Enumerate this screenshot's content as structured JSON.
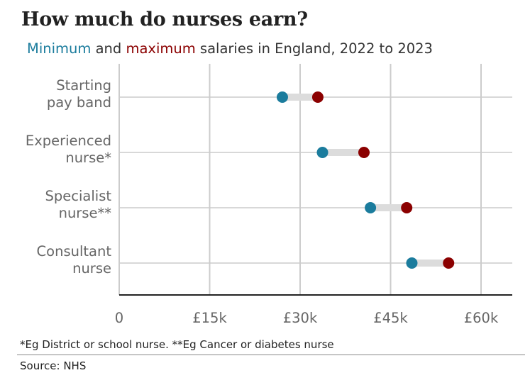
{
  "title": "How much do nurses earn?",
  "subtitle": {
    "min_word": "Minimum",
    "and": " and ",
    "max_word": "maximum",
    "rest": " salaries in England, 2022 to 2023"
  },
  "footnote": "*Eg District or school nurse. **Eg Cancer or diabetes nurse",
  "source": "Source: NHS",
  "colors": {
    "min": "#1b7c9d",
    "max": "#8b0000",
    "range_bar": "#dcdcdc",
    "grid": "#cccccc",
    "axis": "#222222"
  },
  "chart_data": {
    "type": "dumbbell",
    "title": "How much do nurses earn?",
    "series": [
      {
        "name": "Minimum",
        "values": [
          27055,
          33706,
          41659,
          48526
        ]
      },
      {
        "name": "Maximum",
        "values": [
          32934,
          40588,
          47672,
          54619
        ]
      }
    ],
    "categories": [
      {
        "lines": [
          "Starting",
          "pay band"
        ]
      },
      {
        "lines": [
          "Experienced",
          "nurse*"
        ]
      },
      {
        "lines": [
          "Specialist",
          "nurse**"
        ]
      },
      {
        "lines": [
          "Consultant",
          "nurse"
        ]
      }
    ],
    "xlim": [
      0,
      65000
    ],
    "xticks": [
      0,
      15000,
      30000,
      45000,
      60000
    ],
    "xtick_labels": [
      "0",
      "£15k",
      "£30k",
      "£45k",
      "£60k"
    ],
    "grid": "vertical"
  }
}
